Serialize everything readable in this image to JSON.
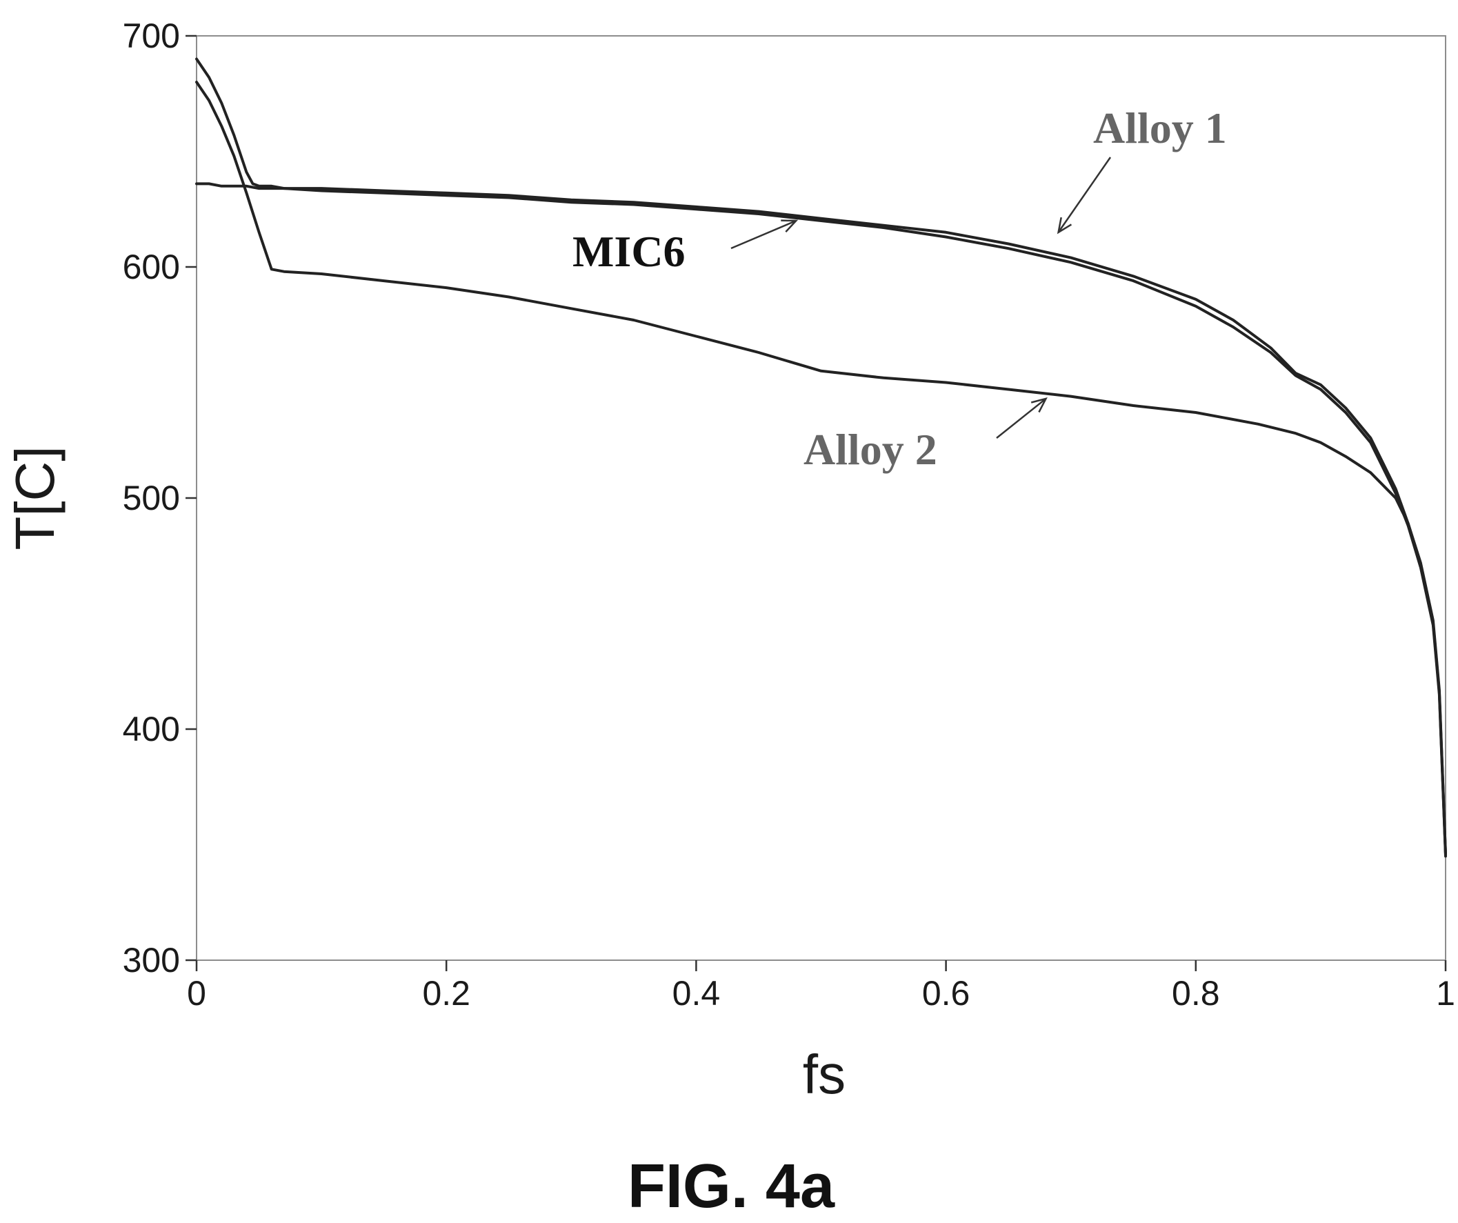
{
  "figure": {
    "caption": "FIG. 4a"
  },
  "colors": {
    "curve": "#222222",
    "label_dark": "#111111",
    "label_gray": "#666666",
    "arrow": "#333333"
  },
  "chart_data": {
    "type": "line",
    "title": "",
    "xlabel": "fs",
    "ylabel": "T[C]",
    "xlim": [
      0,
      1
    ],
    "ylim": [
      300,
      700
    ],
    "grid": false,
    "x_ticks": [
      {
        "value": 0,
        "label": "0"
      },
      {
        "value": 0.2,
        "label": "0.2"
      },
      {
        "value": 0.4,
        "label": "0.4"
      },
      {
        "value": 0.6,
        "label": "0.6"
      },
      {
        "value": 0.8,
        "label": "0.8"
      },
      {
        "value": 1,
        "label": "1"
      }
    ],
    "y_ticks": [
      {
        "value": 300,
        "label": "300"
      },
      {
        "value": 400,
        "label": "400"
      },
      {
        "value": 500,
        "label": "500"
      },
      {
        "value": 600,
        "label": "600"
      },
      {
        "value": 700,
        "label": "700"
      }
    ],
    "series": [
      {
        "name": "MIC6",
        "color": "#222222",
        "x": [
          0,
          0.01,
          0.02,
          0.03,
          0.04,
          0.05,
          0.06,
          0.07,
          0.1,
          0.15,
          0.2,
          0.25,
          0.3,
          0.35,
          0.4,
          0.45,
          0.5,
          0.55,
          0.6,
          0.65,
          0.7,
          0.75,
          0.8,
          0.83,
          0.86,
          0.88,
          0.9,
          0.92,
          0.94,
          0.96,
          0.97,
          0.98,
          0.99,
          0.995,
          1
        ],
        "y": [
          636,
          636,
          635,
          635,
          635,
          634,
          634,
          634,
          633,
          632,
          631,
          630,
          628,
          627,
          625,
          623,
          620,
          617,
          613,
          608,
          602,
          594,
          583,
          574,
          563,
          553,
          547,
          537,
          524,
          502,
          488,
          470,
          445,
          415,
          345
        ]
      },
      {
        "name": "Alloy 1",
        "color": "#222222",
        "x": [
          0,
          0.01,
          0.02,
          0.03,
          0.04,
          0.045,
          0.05,
          0.06,
          0.07,
          0.1,
          0.15,
          0.2,
          0.25,
          0.3,
          0.35,
          0.4,
          0.45,
          0.5,
          0.55,
          0.6,
          0.65,
          0.7,
          0.75,
          0.8,
          0.83,
          0.86,
          0.88,
          0.9,
          0.92,
          0.94,
          0.96,
          0.97,
          0.98,
          0.99,
          0.995,
          1
        ],
        "y": [
          690,
          682,
          671,
          657,
          641,
          636,
          635,
          635,
          634,
          634,
          633,
          632,
          631,
          629,
          628,
          626,
          624,
          621,
          618,
          615,
          610,
          604,
          596,
          586,
          577,
          565,
          554,
          549,
          539,
          526,
          504,
          489,
          471,
          446,
          416,
          346
        ]
      },
      {
        "name": "Alloy 2",
        "color": "#222222",
        "x": [
          0,
          0.01,
          0.02,
          0.03,
          0.04,
          0.05,
          0.06,
          0.07,
          0.1,
          0.15,
          0.2,
          0.25,
          0.3,
          0.35,
          0.4,
          0.45,
          0.5,
          0.55,
          0.6,
          0.65,
          0.7,
          0.75,
          0.8,
          0.85,
          0.88,
          0.9,
          0.92,
          0.94,
          0.96,
          0.97,
          0.98,
          0.99,
          0.995,
          1
        ],
        "y": [
          680,
          672,
          661,
          648,
          632,
          615,
          599,
          598,
          597,
          594,
          591,
          587,
          582,
          577,
          570,
          563,
          555,
          552,
          550,
          547,
          544,
          540,
          537,
          532,
          528,
          524,
          518,
          511,
          500,
          489,
          472,
          447,
          417,
          346
        ]
      }
    ],
    "annotations": [
      {
        "text": "MIC6",
        "series": "MIC6",
        "x": 0.48,
        "y": 620,
        "color": "#111111"
      },
      {
        "text": "Alloy 1",
        "series": "Alloy 1",
        "x": 0.69,
        "y": 615,
        "color": "#666666"
      },
      {
        "text": "Alloy 2",
        "series": "Alloy 2",
        "x": 0.68,
        "y": 543,
        "color": "#666666"
      }
    ]
  }
}
